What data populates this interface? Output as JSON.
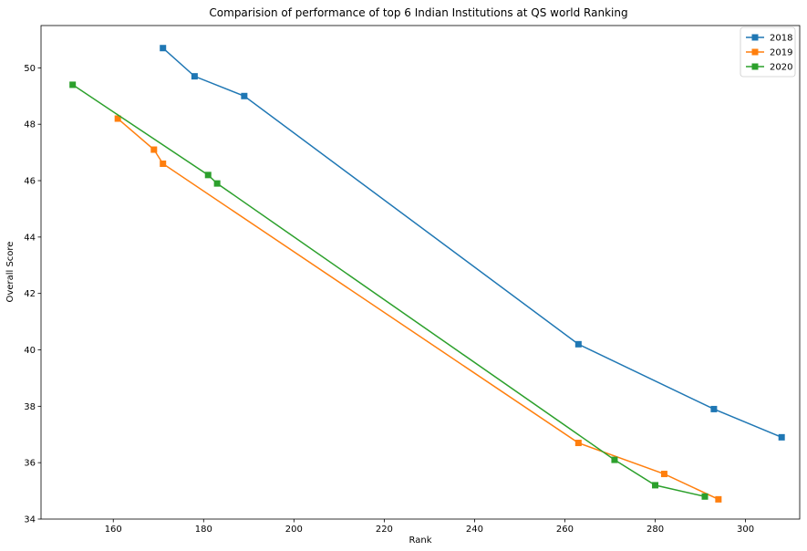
{
  "chart_data": {
    "type": "line",
    "title": "Comparision of performance of top 6 Indian Institutions at QS world Ranking",
    "xlabel": "Rank",
    "ylabel": "Overall Score",
    "xlim": [
      144,
      312
    ],
    "ylim": [
      34,
      51.5
    ],
    "xticks": [
      160,
      180,
      200,
      220,
      240,
      260,
      280,
      300
    ],
    "yticks": [
      34,
      36,
      38,
      40,
      42,
      44,
      46,
      48,
      50
    ],
    "grid": false,
    "legend": "top-right",
    "marker": "square",
    "series": [
      {
        "name": "2018",
        "color": "#1f77b4",
        "x": [
          171,
          178,
          189,
          263,
          293,
          308
        ],
        "y": [
          50.7,
          49.7,
          49.0,
          40.2,
          37.9,
          36.9
        ]
      },
      {
        "name": "2019",
        "color": "#ff7f0e",
        "x": [
          161,
          169,
          171,
          263,
          282,
          294
        ],
        "y": [
          48.2,
          47.1,
          46.6,
          36.7,
          35.6,
          34.7
        ]
      },
      {
        "name": "2020",
        "color": "#2ca02c",
        "x": [
          151,
          181,
          183,
          271,
          280,
          291
        ],
        "y": [
          49.4,
          46.2,
          45.9,
          36.1,
          35.2,
          34.8
        ]
      }
    ]
  }
}
